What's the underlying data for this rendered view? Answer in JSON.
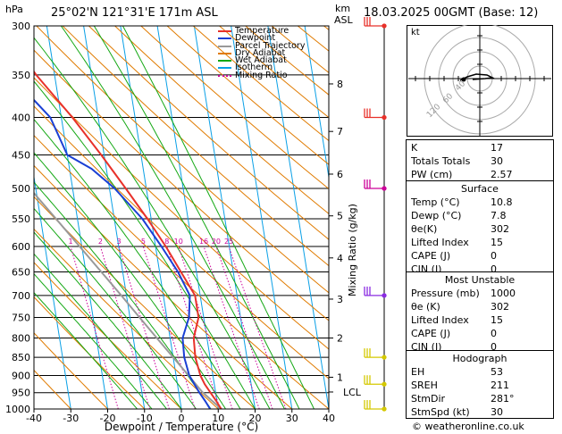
{
  "header": {
    "location": "25°02'N 121°31'E 171m ASL",
    "datetime": "18.03.2025 00GMT (Base: 12)",
    "hpa_label": "hPa",
    "km_label": "km",
    "asl_label": "ASL"
  },
  "footer": {
    "copyright": "© weatheronline.co.uk"
  },
  "legend": [
    {
      "label": "Temperature",
      "color": "#e8312a",
      "style": "solid"
    },
    {
      "label": "Dewpoint",
      "color": "#1a3fd4",
      "style": "solid"
    },
    {
      "label": "Parcel Trajectory",
      "color": "#999999",
      "style": "solid"
    },
    {
      "label": "Dry Adiabat",
      "color": "#e07b00",
      "style": "solid"
    },
    {
      "label": "Wet Adiabat",
      "color": "#14a814",
      "style": "solid"
    },
    {
      "label": "Isotherm",
      "color": "#0aa0e6",
      "style": "solid"
    },
    {
      "label": "Mixing Ratio",
      "color": "#cc0099",
      "style": "dotted"
    }
  ],
  "chart_data": {
    "type": "skew-t",
    "xlabel": "Dewpoint / Temperature (°C)",
    "ylabel_right": "Mixing Ratio (g/kg)",
    "x_ticks": [
      -40,
      -30,
      -20,
      -10,
      0,
      10,
      20,
      30,
      40
    ],
    "pressure_ticks": [
      300,
      350,
      400,
      450,
      500,
      550,
      600,
      650,
      700,
      750,
      800,
      850,
      900,
      950,
      1000
    ],
    "km_ticks": [
      {
        "km": "1",
        "p": 905
      },
      {
        "km": "2",
        "p": 800
      },
      {
        "km": "3",
        "p": 708
      },
      {
        "km": "4",
        "p": 622
      },
      {
        "km": "5",
        "p": 545
      },
      {
        "km": "6",
        "p": 478
      },
      {
        "km": "7",
        "p": 418
      },
      {
        "km": "8",
        "p": 360
      }
    ],
    "lcl": {
      "label": "LCL",
      "p": 948
    },
    "mixing_ratio_labels": [
      "1",
      "2",
      "3",
      "5",
      "8",
      "10",
      "16",
      "20",
      "25"
    ],
    "mixing_ratio_values": [
      1,
      2,
      3,
      5,
      8,
      10,
      16,
      20,
      25
    ],
    "temperature": [
      {
        "p": 1000,
        "t": 10.8
      },
      {
        "p": 975,
        "t": 9.8
      },
      {
        "p": 950,
        "t": 8.6
      },
      {
        "p": 925,
        "t": 7.4
      },
      {
        "p": 900,
        "t": 6.6
      },
      {
        "p": 850,
        "t": 6.0
      },
      {
        "p": 800,
        "t": 6.4
      },
      {
        "p": 750,
        "t": 8.6
      },
      {
        "p": 700,
        "t": 8.6
      },
      {
        "p": 650,
        "t": 5.8
      },
      {
        "p": 600,
        "t": 2.8
      },
      {
        "p": 550,
        "t": -1.0
      },
      {
        "p": 500,
        "t": -5.6
      },
      {
        "p": 450,
        "t": -10.8
      },
      {
        "p": 400,
        "t": -17.0
      },
      {
        "p": 350,
        "t": -25.0
      },
      {
        "p": 300,
        "t": -32.0
      }
    ],
    "dewpoint": [
      {
        "p": 1000,
        "t": 7.8
      },
      {
        "p": 975,
        "t": 6.8
      },
      {
        "p": 950,
        "t": 5.6
      },
      {
        "p": 925,
        "t": 4.6
      },
      {
        "p": 900,
        "t": 3.6
      },
      {
        "p": 850,
        "t": 3.0
      },
      {
        "p": 800,
        "t": 3.4
      },
      {
        "p": 750,
        "t": 6.0
      },
      {
        "p": 700,
        "t": 7.2
      },
      {
        "p": 650,
        "t": 5.0
      },
      {
        "p": 600,
        "t": 1.6
      },
      {
        "p": 550,
        "t": -2.4
      },
      {
        "p": 500,
        "t": -8.6
      },
      {
        "p": 470,
        "t": -14.0
      },
      {
        "p": 450,
        "t": -20.0
      },
      {
        "p": 400,
        "t": -23.0
      },
      {
        "p": 350,
        "t": -32.0
      },
      {
        "p": 320,
        "t": -50.0
      },
      {
        "p": 300,
        "t": -62.0
      }
    ],
    "parcel": [
      {
        "p": 1000,
        "t": 10.8
      },
      {
        "p": 948,
        "t": 6.4
      },
      {
        "p": 900,
        "t": 3.4
      },
      {
        "p": 850,
        "t": 0.0
      },
      {
        "p": 800,
        "t": -3.6
      },
      {
        "p": 750,
        "t": -7.4
      },
      {
        "p": 700,
        "t": -11.4
      },
      {
        "p": 650,
        "t": -15.8
      },
      {
        "p": 600,
        "t": -20.6
      },
      {
        "p": 550,
        "t": -25.8
      },
      {
        "p": 500,
        "t": -31.6
      },
      {
        "p": 450,
        "t": -38.0
      },
      {
        "p": 400,
        "t": -45.2
      },
      {
        "p": 350,
        "t": -53.2
      },
      {
        "p": 300,
        "t": -62.0
      }
    ],
    "wind_barbs": [
      {
        "p": 300,
        "color": "#e8312a"
      },
      {
        "p": 400,
        "color": "#e8312a"
      },
      {
        "p": 500,
        "color": "#cc0099"
      },
      {
        "p": 700,
        "color": "#8a2be2"
      },
      {
        "p": 850,
        "color": "#d4c800"
      },
      {
        "p": 925,
        "color": "#d4c800"
      },
      {
        "p": 1000,
        "color": "#d4c800"
      }
    ]
  },
  "hodograph": {
    "unit_label": "kt",
    "ring_labels": [
      "40",
      "60",
      "120"
    ]
  },
  "indices": {
    "rows": [
      {
        "label": "K",
        "value": "17"
      },
      {
        "label": "Totals Totals",
        "value": "30"
      },
      {
        "label": "PW (cm)",
        "value": "2.57"
      }
    ]
  },
  "surface": {
    "title": "Surface",
    "rows": [
      {
        "label": "Temp (°C)",
        "value": "10.8"
      },
      {
        "label": "Dewp (°C)",
        "value": "7.8"
      },
      {
        "label": "θe(K)",
        "value": "302"
      },
      {
        "label": "Lifted Index",
        "value": "15"
      },
      {
        "label": "CAPE (J)",
        "value": "0"
      },
      {
        "label": "CIN (J)",
        "value": "0"
      }
    ]
  },
  "most_unstable": {
    "title": "Most Unstable",
    "rows": [
      {
        "label": "Pressure (mb)",
        "value": "1000"
      },
      {
        "label": "θe (K)",
        "value": "302"
      },
      {
        "label": "Lifted Index",
        "value": "15"
      },
      {
        "label": "CAPE (J)",
        "value": "0"
      },
      {
        "label": "CIN (J)",
        "value": "0"
      }
    ]
  },
  "hodograph_table": {
    "title": "Hodograph",
    "rows": [
      {
        "label": "EH",
        "value": "53"
      },
      {
        "label": "SREH",
        "value": "211"
      },
      {
        "label": "StmDir",
        "value": "281°"
      },
      {
        "label": "StmSpd (kt)",
        "value": "30"
      }
    ]
  }
}
